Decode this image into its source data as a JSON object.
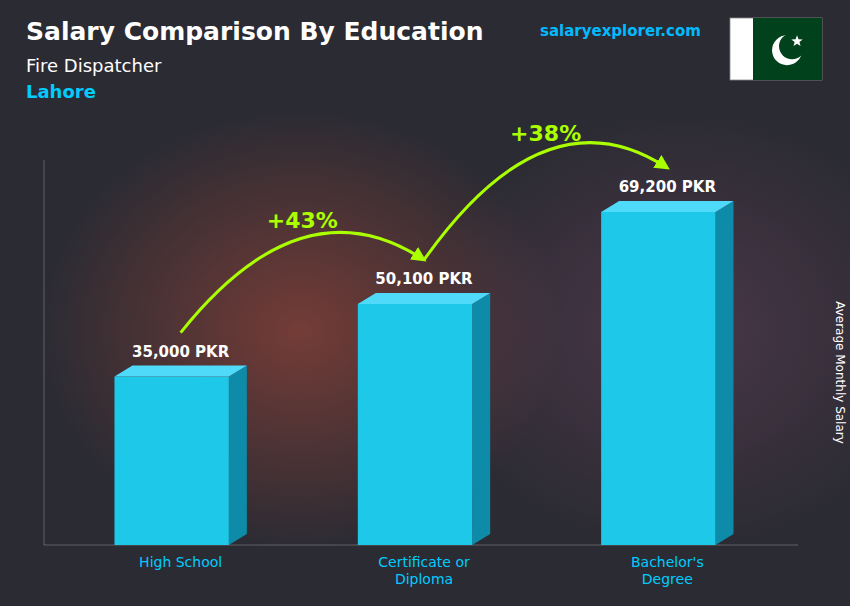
{
  "chart_data": {
    "type": "bar",
    "title": "Salary Comparison By Education",
    "subtitle": "Fire Dispatcher",
    "annotations": {
      "city": "Lahore",
      "source": "salaryexplorer.com",
      "changes": [
        "+43%",
        "+38%"
      ]
    },
    "y_label": "Average Monthly Salary",
    "categories": [
      "High School",
      "Certificate or\nDiploma",
      "Bachelor's\nDegree"
    ],
    "values": [
      35000,
      50100,
      69200
    ],
    "value_labels": [
      "35,000 PKR",
      "50,100 PKR",
      "69,200 PKR"
    ],
    "data_labels": true,
    "color": "#1EC8E8",
    "ylim": [
      0,
      80000
    ],
    "tick_labels": false,
    "grid": false
  }
}
